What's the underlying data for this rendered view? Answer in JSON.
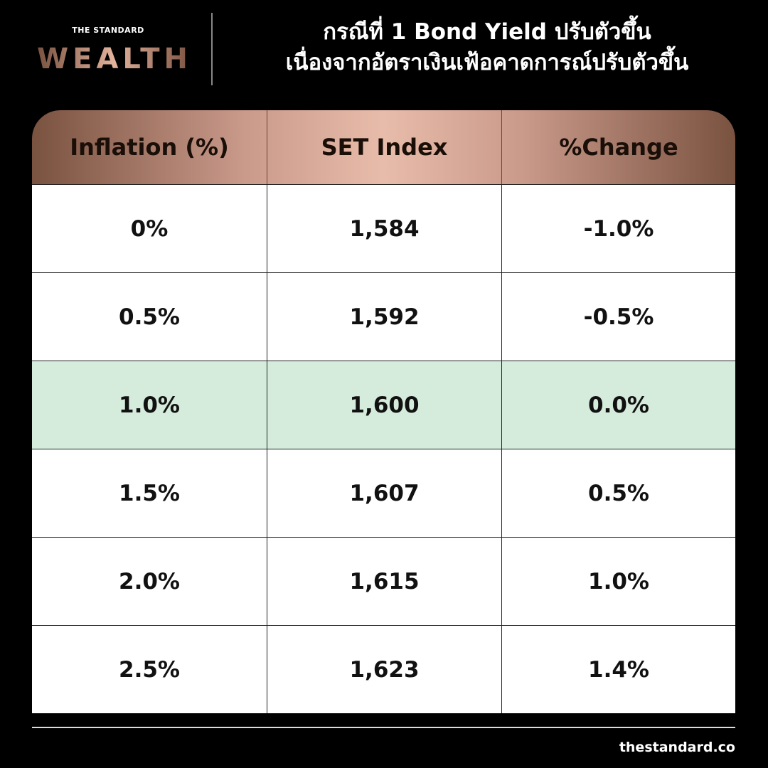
{
  "header": {
    "brand_small": "THE STANDARD",
    "brand": "WEALTH",
    "title_lines": [
      "กรณีที่ 1 Bond Yield ปรับตัวขึ้น",
      "เนื่องจากอัตราเงินเฟ้อคาดการณ์ปรับตัวขึ้น"
    ]
  },
  "table": {
    "columns": [
      "Inflation (%)",
      "SET Index",
      "%Change"
    ],
    "rows": [
      [
        "0%",
        "1,584",
        "-1.0%"
      ],
      [
        "0.5%",
        "1,592",
        "-0.5%"
      ],
      [
        "1.0%",
        "1,600",
        "0.0%"
      ],
      [
        "1.5%",
        "1,607",
        "0.5%"
      ],
      [
        "2.0%",
        "1,615",
        "1.0%"
      ],
      [
        "2.5%",
        "1,623",
        "1.4%"
      ]
    ]
  },
  "footer": {
    "site": "thestandard.co"
  }
}
